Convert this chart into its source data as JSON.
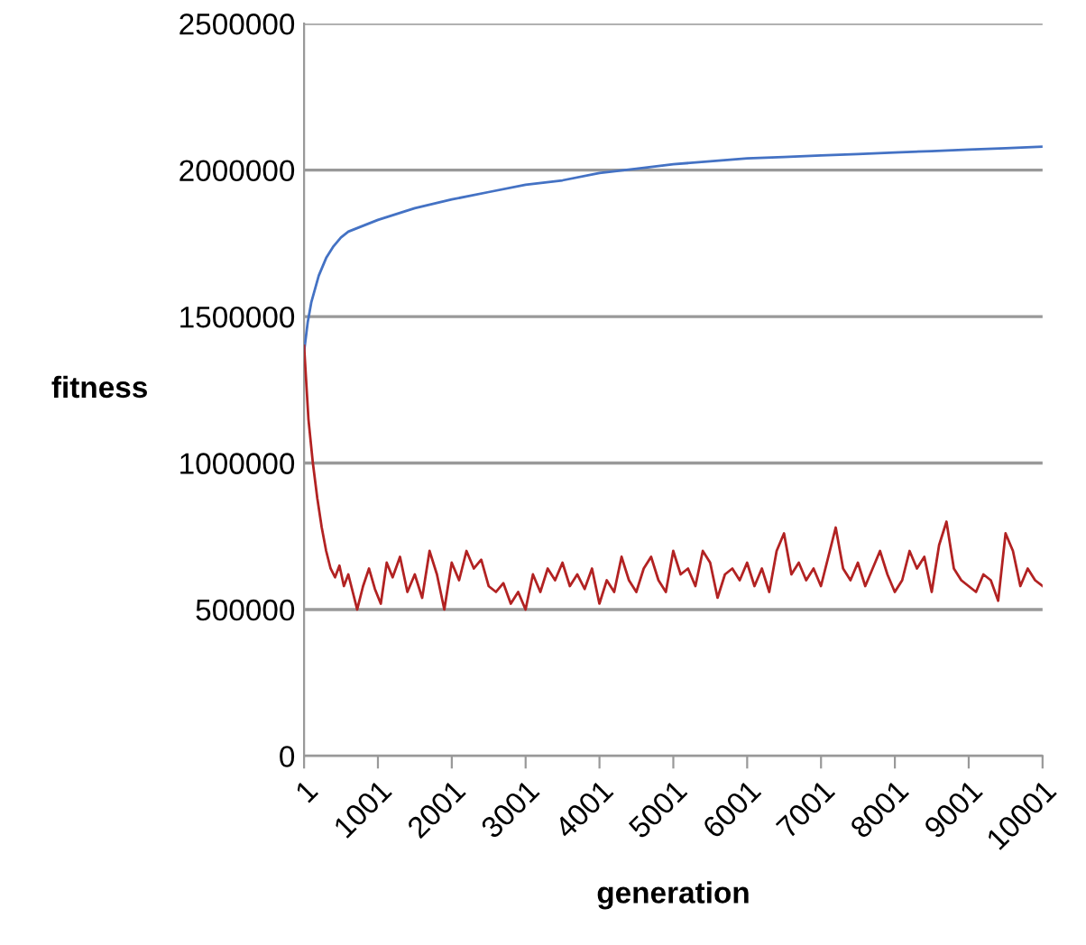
{
  "chart_data": {
    "type": "line",
    "xlabel": "generation",
    "ylabel": "fitness",
    "xlim": [
      1,
      10001
    ],
    "xticks": [
      1,
      1001,
      2001,
      3001,
      4001,
      5001,
      6001,
      7001,
      8001,
      9001,
      10001
    ],
    "ylim": [
      0,
      2500000
    ],
    "yticks": [
      0,
      500000,
      1000000,
      1500000,
      2000000,
      2500000
    ],
    "grid": "y",
    "marker": "none",
    "line_style": "solid",
    "series": [
      {
        "color": "#4472c4",
        "x": [
          1,
          50,
          100,
          200,
          300,
          400,
          500,
          600,
          700,
          800,
          1001,
          1500,
          2001,
          2500,
          3001,
          3500,
          4001,
          4500,
          5001,
          5500,
          6001,
          6500,
          7001,
          7500,
          8001,
          8500,
          9001,
          9500,
          10001
        ],
        "values": [
          1380000,
          1480000,
          1550000,
          1640000,
          1700000,
          1740000,
          1770000,
          1790000,
          1800000,
          1810000,
          1830000,
          1870000,
          1900000,
          1925000,
          1950000,
          1965000,
          1990000,
          2005000,
          2020000,
          2030000,
          2040000,
          2045000,
          2050000,
          2055000,
          2060000,
          2065000,
          2070000,
          2075000,
          2080000
        ]
      },
      {
        "color": "#b22222",
        "x": [
          1,
          60,
          120,
          180,
          240,
          300,
          360,
          420,
          480,
          540,
          600,
          660,
          720,
          800,
          880,
          960,
          1040,
          1120,
          1200,
          1300,
          1400,
          1500,
          1600,
          1700,
          1800,
          1900,
          2000,
          2100,
          2200,
          2300,
          2400,
          2500,
          2600,
          2700,
          2800,
          2900,
          3000,
          3100,
          3200,
          3300,
          3400,
          3500,
          3600,
          3700,
          3800,
          3900,
          4000,
          4100,
          4200,
          4300,
          4400,
          4500,
          4600,
          4700,
          4800,
          4900,
          5000,
          5100,
          5200,
          5300,
          5400,
          5500,
          5600,
          5700,
          5800,
          5900,
          6000,
          6100,
          6200,
          6300,
          6400,
          6500,
          6600,
          6700,
          6800,
          6900,
          7000,
          7100,
          7200,
          7300,
          7400,
          7500,
          7600,
          7700,
          7800,
          7900,
          8000,
          8100,
          8200,
          8300,
          8400,
          8500,
          8600,
          8700,
          8800,
          8900,
          9000,
          9100,
          9200,
          9300,
          9400,
          9500,
          9600,
          9700,
          9800,
          9900,
          10001
        ],
        "values": [
          1400000,
          1150000,
          1000000,
          880000,
          780000,
          700000,
          640000,
          610000,
          650000,
          580000,
          620000,
          560000,
          500000,
          580000,
          640000,
          570000,
          520000,
          660000,
          610000,
          680000,
          560000,
          620000,
          540000,
          700000,
          620000,
          500000,
          660000,
          600000,
          700000,
          640000,
          670000,
          580000,
          560000,
          590000,
          520000,
          560000,
          500000,
          620000,
          560000,
          640000,
          600000,
          660000,
          580000,
          620000,
          570000,
          640000,
          520000,
          600000,
          560000,
          680000,
          600000,
          560000,
          640000,
          680000,
          600000,
          560000,
          700000,
          620000,
          640000,
          580000,
          700000,
          660000,
          540000,
          620000,
          640000,
          600000,
          660000,
          580000,
          640000,
          560000,
          700000,
          760000,
          620000,
          660000,
          600000,
          640000,
          580000,
          680000,
          780000,
          640000,
          600000,
          660000,
          580000,
          640000,
          700000,
          620000,
          560000,
          600000,
          700000,
          640000,
          680000,
          560000,
          720000,
          800000,
          640000,
          600000,
          580000,
          560000,
          620000,
          600000,
          530000,
          760000,
          700000,
          580000,
          640000,
          600000,
          580000
        ]
      }
    ]
  }
}
